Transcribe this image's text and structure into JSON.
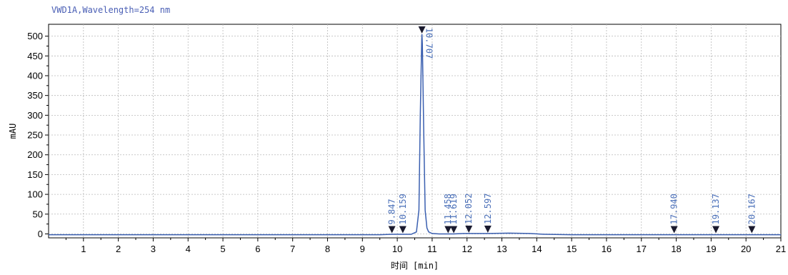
{
  "chart_data": {
    "type": "line",
    "title": "VWD1A,Wavelength=254 nm",
    "xlabel": "时间 [min]",
    "ylabel": "mAU",
    "xlim": [
      0,
      21
    ],
    "ylim": [
      -10,
      530
    ],
    "x_ticks": [
      1,
      2,
      3,
      4,
      5,
      6,
      7,
      8,
      9,
      10,
      11,
      12,
      13,
      14,
      15,
      16,
      17,
      18,
      19,
      20,
      21
    ],
    "y_ticks": [
      0,
      50,
      100,
      150,
      200,
      250,
      300,
      350,
      400,
      450,
      500
    ],
    "grid": true,
    "line_color": "#3a5fb0",
    "series": [
      {
        "x": [
          0,
          2,
          4,
          6,
          8,
          9.5,
          9.847,
          10.0,
          10.159,
          10.4,
          10.55,
          10.62,
          10.66,
          10.7,
          10.707,
          10.72,
          10.76,
          10.8,
          10.85,
          10.9,
          11.0,
          11.2,
          11.458,
          11.619,
          11.9,
          12.052,
          12.597,
          13.2,
          13.8,
          14.2,
          15,
          17.94,
          19.137,
          20.167,
          21
        ],
        "y": [
          -2,
          -2,
          -2,
          -2,
          -2,
          -2,
          -1,
          -1,
          -1,
          -1,
          5,
          60,
          300,
          490,
          505,
          480,
          250,
          60,
          15,
          5,
          1,
          0,
          0,
          0,
          1,
          1,
          1,
          2,
          1,
          -1,
          -2,
          -2,
          -2,
          -2,
          -2
        ]
      }
    ],
    "peaks": [
      {
        "rt": 9.847,
        "label": "9.847"
      },
      {
        "rt": 10.159,
        "label": "10.159"
      },
      {
        "rt": 10.707,
        "label": "10.707"
      },
      {
        "rt": 11.458,
        "label": "11.458"
      },
      {
        "rt": 11.619,
        "label": "11.619"
      },
      {
        "rt": 12.052,
        "label": "12.052"
      },
      {
        "rt": 12.597,
        "label": "12.597"
      },
      {
        "rt": 17.94,
        "label": "17.940"
      },
      {
        "rt": 19.137,
        "label": "19.137"
      },
      {
        "rt": 20.167,
        "label": "20.167"
      }
    ]
  }
}
